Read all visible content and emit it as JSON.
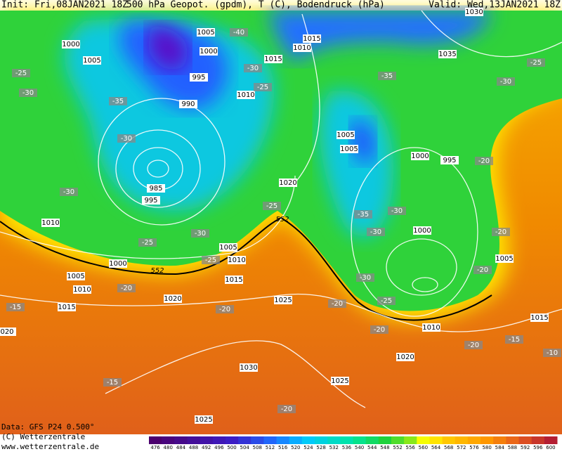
{
  "header": {
    "init": "Init: Fri,08JAN2021 18Z",
    "title": "500 hPa Geopot. (gpdm), T (C), Bodendruck (hPa)",
    "valid": "Valid: Wed,13JAN2021 18Z"
  },
  "footer": {
    "data": "Data: GFS P24 0.500°",
    "copyright": "(C) Wetterzentrale",
    "url": "www.wetterzentrale.de"
  },
  "map": {
    "pressure_labels": [
      "1005",
      "1000",
      "1015",
      "1010",
      "1015",
      "1000",
      "1005",
      "1035",
      "1030",
      "995",
      "990",
      "1010",
      "1005",
      "1005",
      "1000",
      "995",
      "1020",
      "985",
      "995",
      "1010",
      "1005",
      "1010",
      "1000",
      "1005",
      "1010",
      "1015",
      "1020",
      "1015",
      "1025",
      "1000",
      "1005",
      "1010",
      "1015",
      "1020",
      "1030",
      "1025",
      "1025",
      "020"
    ],
    "temperature_labels": [
      "-40",
      "-25",
      "-30",
      "-35",
      "-30",
      "-30",
      "-25",
      "-30",
      "-25",
      "-25",
      "-30",
      "-25",
      "-35",
      "-25",
      "-30",
      "-20",
      "-35",
      "-30",
      "-30",
      "-20",
      "-20",
      "-30",
      "-25",
      "-20",
      "-20",
      "-20",
      "-15",
      "-20",
      "-20",
      "-15",
      "-10",
      "-15",
      "-20"
    ],
    "geopotential_labels": [
      "552",
      "552"
    ]
  },
  "colorbar": {
    "labels": [
      "476",
      "480",
      "484",
      "488",
      "492",
      "496",
      "500",
      "504",
      "508",
      "512",
      "516",
      "520",
      "524",
      "528",
      "532",
      "536",
      "540",
      "544",
      "548",
      "552",
      "556",
      "560",
      "564",
      "568",
      "572",
      "576",
      "580",
      "584",
      "588",
      "592",
      "596",
      "600"
    ]
  }
}
